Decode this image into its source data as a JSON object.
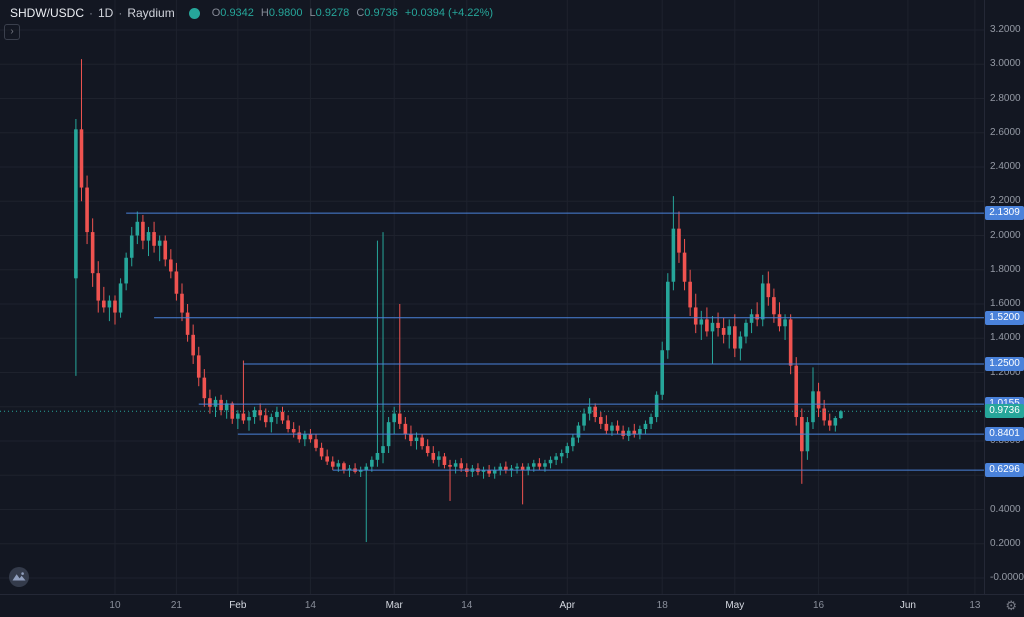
{
  "header": {
    "symbol": "SHDW/USDC",
    "separator": "·",
    "interval": "1D",
    "provider": "Raydium",
    "ohlc": {
      "open_label": "O",
      "open": "0.9342",
      "high_label": "H",
      "high": "0.9800",
      "low_label": "L",
      "low": "0.9278",
      "close_label": "C",
      "close": "0.9736",
      "change": "+0.0394 (+4.22%)"
    }
  },
  "icons": {
    "collapse": "›",
    "settings": "⚙"
  },
  "colors": {
    "background": "#131722",
    "grid": "#1e222d",
    "up": "#26a69a",
    "down": "#ef5350",
    "level_blue": "#4a82da",
    "last_price_green": "#26a69a"
  },
  "price_axis": {
    "ticks": [
      {
        "label": "3.2000",
        "value": 3.2
      },
      {
        "label": "3.0000",
        "value": 3.0
      },
      {
        "label": "2.8000",
        "value": 2.8
      },
      {
        "label": "2.6000",
        "value": 2.6
      },
      {
        "label": "2.4000",
        "value": 2.4
      },
      {
        "label": "2.2000",
        "value": 2.2
      },
      {
        "label": "2.0000",
        "value": 2.0
      },
      {
        "label": "1.8000",
        "value": 1.8
      },
      {
        "label": "1.6000",
        "value": 1.6
      },
      {
        "label": "1.4000",
        "value": 1.4
      },
      {
        "label": "1.2000",
        "value": 1.2
      },
      {
        "label": "0.8000",
        "value": 0.8
      },
      {
        "label": "0.6000",
        "value": 0.6
      },
      {
        "label": "0.4000",
        "value": 0.4
      },
      {
        "label": "0.2000",
        "value": 0.2
      },
      {
        "label": "-0.0000",
        "value": 0.0
      }
    ],
    "level_labels": [
      {
        "label": "2.1309",
        "value": 2.1309
      },
      {
        "label": "1.5200",
        "value": 1.52
      },
      {
        "label": "1.2500",
        "value": 1.25
      },
      {
        "label": "1.0155",
        "value": 1.0155
      },
      {
        "label": "0.8401",
        "value": 0.8401
      },
      {
        "label": "0.6296",
        "value": 0.6296
      }
    ],
    "last_price_label": {
      "label": "0.9736",
      "value": 0.9736
    }
  },
  "time_axis": {
    "ticks": [
      {
        "label": "10",
        "index": 7,
        "major": false
      },
      {
        "label": "21",
        "index": 18,
        "major": false
      },
      {
        "label": "Feb",
        "index": 29,
        "major": true
      },
      {
        "label": "14",
        "index": 42,
        "major": false
      },
      {
        "label": "Mar",
        "index": 57,
        "major": true
      },
      {
        "label": "14",
        "index": 70,
        "major": false
      },
      {
        "label": "Apr",
        "index": 88,
        "major": true
      },
      {
        "label": "18",
        "index": 105,
        "major": false
      },
      {
        "label": "May",
        "index": 118,
        "major": true
      },
      {
        "label": "16",
        "index": 133,
        "major": false
      },
      {
        "label": "Jun",
        "index": 149,
        "major": true
      },
      {
        "label": "13",
        "index": 161,
        "major": false
      }
    ]
  },
  "chart_data": {
    "type": "candlestick",
    "title": "SHDW/USDC · 1D · Raydium",
    "ylim": [
      0,
      3.2
    ],
    "y_step": 0.2,
    "last_price": 0.9736,
    "levels": [
      {
        "price": 2.1309,
        "from_index": 9
      },
      {
        "price": 1.52,
        "from_index": 14
      },
      {
        "price": 1.25,
        "from_index": 30
      },
      {
        "price": 1.0155,
        "from_index": 22
      },
      {
        "price": 0.8401,
        "from_index": 29
      },
      {
        "price": 0.6296,
        "from_index": 46
      }
    ],
    "ohlc": [
      [
        1.75,
        2.68,
        1.18,
        2.62
      ],
      [
        2.62,
        3.03,
        2.2,
        2.28
      ],
      [
        2.28,
        2.35,
        1.95,
        2.02
      ],
      [
        2.02,
        2.1,
        1.7,
        1.78
      ],
      [
        1.78,
        1.85,
        1.55,
        1.62
      ],
      [
        1.62,
        1.7,
        1.55,
        1.58
      ],
      [
        1.58,
        1.65,
        1.5,
        1.62
      ],
      [
        1.62,
        1.65,
        1.48,
        1.55
      ],
      [
        1.55,
        1.75,
        1.52,
        1.72
      ],
      [
        1.72,
        1.9,
        1.68,
        1.87
      ],
      [
        1.87,
        2.05,
        1.82,
        2.0
      ],
      [
        2.0,
        2.14,
        1.95,
        2.08
      ],
      [
        2.08,
        2.12,
        1.92,
        1.97
      ],
      [
        1.97,
        2.05,
        1.88,
        2.02
      ],
      [
        2.02,
        2.08,
        1.9,
        1.94
      ],
      [
        1.94,
        2.0,
        1.85,
        1.97
      ],
      [
        1.97,
        2.0,
        1.82,
        1.86
      ],
      [
        1.86,
        1.92,
        1.75,
        1.79
      ],
      [
        1.79,
        1.84,
        1.62,
        1.66
      ],
      [
        1.66,
        1.72,
        1.5,
        1.55
      ],
      [
        1.55,
        1.6,
        1.38,
        1.42
      ],
      [
        1.42,
        1.48,
        1.25,
        1.3
      ],
      [
        1.3,
        1.35,
        1.12,
        1.17
      ],
      [
        1.17,
        1.22,
        1.0,
        1.05
      ],
      [
        1.05,
        1.1,
        0.96,
        1.0
      ],
      [
        1.0,
        1.06,
        0.94,
        1.04
      ],
      [
        1.04,
        1.07,
        0.95,
        0.98
      ],
      [
        0.98,
        1.04,
        0.93,
        1.02
      ],
      [
        1.02,
        1.03,
        0.9,
        0.93
      ],
      [
        0.93,
        0.98,
        0.87,
        0.96
      ],
      [
        0.96,
        1.27,
        0.9,
        0.92
      ],
      [
        0.92,
        0.97,
        0.86,
        0.94
      ],
      [
        0.94,
        1.0,
        0.9,
        0.98
      ],
      [
        0.98,
        1.02,
        0.92,
        0.95
      ],
      [
        0.95,
        0.99,
        0.88,
        0.91
      ],
      [
        0.91,
        0.96,
        0.85,
        0.94
      ],
      [
        0.94,
        1.0,
        0.9,
        0.97
      ],
      [
        0.97,
        1.0,
        0.9,
        0.92
      ],
      [
        0.92,
        0.95,
        0.85,
        0.87
      ],
      [
        0.87,
        0.91,
        0.82,
        0.85
      ],
      [
        0.85,
        0.89,
        0.79,
        0.81
      ],
      [
        0.81,
        0.86,
        0.77,
        0.84
      ],
      [
        0.84,
        0.87,
        0.79,
        0.81
      ],
      [
        0.81,
        0.84,
        0.74,
        0.76
      ],
      [
        0.76,
        0.79,
        0.69,
        0.71
      ],
      [
        0.71,
        0.75,
        0.66,
        0.68
      ],
      [
        0.68,
        0.71,
        0.63,
        0.65
      ],
      [
        0.65,
        0.69,
        0.62,
        0.67
      ],
      [
        0.67,
        0.68,
        0.61,
        0.63
      ],
      [
        0.63,
        0.66,
        0.59,
        0.64
      ],
      [
        0.64,
        0.67,
        0.61,
        0.62
      ],
      [
        0.62,
        0.65,
        0.59,
        0.63
      ],
      [
        0.63,
        0.67,
        0.21,
        0.65
      ],
      [
        0.65,
        0.71,
        0.62,
        0.69
      ],
      [
        0.69,
        1.97,
        0.65,
        0.73
      ],
      [
        0.73,
        2.02,
        0.67,
        0.77
      ],
      [
        0.77,
        0.94,
        0.73,
        0.91
      ],
      [
        0.91,
        1.0,
        0.84,
        0.96
      ],
      [
        0.96,
        1.6,
        0.87,
        0.9
      ],
      [
        0.9,
        0.94,
        0.81,
        0.84
      ],
      [
        0.84,
        0.89,
        0.77,
        0.8
      ],
      [
        0.8,
        0.85,
        0.75,
        0.82
      ],
      [
        0.82,
        0.84,
        0.75,
        0.77
      ],
      [
        0.77,
        0.81,
        0.71,
        0.73
      ],
      [
        0.73,
        0.77,
        0.67,
        0.69
      ],
      [
        0.69,
        0.74,
        0.65,
        0.71
      ],
      [
        0.71,
        0.73,
        0.64,
        0.66
      ],
      [
        0.66,
        0.69,
        0.45,
        0.65
      ],
      [
        0.65,
        0.69,
        0.61,
        0.67
      ],
      [
        0.67,
        0.7,
        0.62,
        0.64
      ],
      [
        0.64,
        0.67,
        0.59,
        0.62
      ],
      [
        0.62,
        0.66,
        0.59,
        0.64
      ],
      [
        0.64,
        0.67,
        0.6,
        0.62
      ],
      [
        0.62,
        0.65,
        0.58,
        0.63
      ],
      [
        0.63,
        0.66,
        0.59,
        0.61
      ],
      [
        0.61,
        0.65,
        0.58,
        0.63
      ],
      [
        0.63,
        0.67,
        0.6,
        0.65
      ],
      [
        0.65,
        0.68,
        0.61,
        0.63
      ],
      [
        0.63,
        0.66,
        0.59,
        0.64
      ],
      [
        0.64,
        0.67,
        0.61,
        0.65
      ],
      [
        0.65,
        0.67,
        0.43,
        0.63
      ],
      [
        0.63,
        0.67,
        0.6,
        0.65
      ],
      [
        0.65,
        0.69,
        0.62,
        0.67
      ],
      [
        0.67,
        0.7,
        0.63,
        0.65
      ],
      [
        0.65,
        0.69,
        0.62,
        0.67
      ],
      [
        0.67,
        0.71,
        0.64,
        0.69
      ],
      [
        0.69,
        0.73,
        0.66,
        0.71
      ],
      [
        0.71,
        0.75,
        0.67,
        0.73
      ],
      [
        0.73,
        0.79,
        0.7,
        0.77
      ],
      [
        0.77,
        0.84,
        0.74,
        0.82
      ],
      [
        0.82,
        0.91,
        0.79,
        0.89
      ],
      [
        0.89,
        0.99,
        0.86,
        0.96
      ],
      [
        0.96,
        1.05,
        0.92,
        1.0
      ],
      [
        1.0,
        1.02,
        0.91,
        0.94
      ],
      [
        0.94,
        0.97,
        0.87,
        0.9
      ],
      [
        0.9,
        0.95,
        0.84,
        0.86
      ],
      [
        0.86,
        0.91,
        0.83,
        0.89
      ],
      [
        0.89,
        0.92,
        0.84,
        0.86
      ],
      [
        0.86,
        0.89,
        0.81,
        0.83
      ],
      [
        0.83,
        0.88,
        0.8,
        0.86
      ],
      [
        0.86,
        0.9,
        0.82,
        0.84
      ],
      [
        0.84,
        0.89,
        0.81,
        0.87
      ],
      [
        0.87,
        0.92,
        0.84,
        0.9
      ],
      [
        0.9,
        0.96,
        0.87,
        0.94
      ],
      [
        0.94,
        1.09,
        0.91,
        1.07
      ],
      [
        1.07,
        1.38,
        1.04,
        1.33
      ],
      [
        1.33,
        1.78,
        1.28,
        1.73
      ],
      [
        1.73,
        2.23,
        1.68,
        2.04
      ],
      [
        2.04,
        2.14,
        1.84,
        1.9
      ],
      [
        1.9,
        1.98,
        1.68,
        1.73
      ],
      [
        1.73,
        1.8,
        1.53,
        1.58
      ],
      [
        1.58,
        1.66,
        1.43,
        1.48
      ],
      [
        1.48,
        1.56,
        1.39,
        1.51
      ],
      [
        1.51,
        1.58,
        1.41,
        1.44
      ],
      [
        1.44,
        1.53,
        1.25,
        1.49
      ],
      [
        1.49,
        1.55,
        1.41,
        1.46
      ],
      [
        1.46,
        1.52,
        1.37,
        1.42
      ],
      [
        1.42,
        1.51,
        1.34,
        1.47
      ],
      [
        1.47,
        1.54,
        1.29,
        1.34
      ],
      [
        1.34,
        1.44,
        1.27,
        1.41
      ],
      [
        1.41,
        1.51,
        1.37,
        1.49
      ],
      [
        1.49,
        1.57,
        1.43,
        1.54
      ],
      [
        1.54,
        1.61,
        1.47,
        1.51
      ],
      [
        1.51,
        1.77,
        1.47,
        1.72
      ],
      [
        1.72,
        1.79,
        1.59,
        1.64
      ],
      [
        1.64,
        1.69,
        1.49,
        1.54
      ],
      [
        1.54,
        1.61,
        1.44,
        1.47
      ],
      [
        1.47,
        1.54,
        1.39,
        1.51
      ],
      [
        1.51,
        1.54,
        1.19,
        1.24
      ],
      [
        1.24,
        1.29,
        0.89,
        0.94
      ],
      [
        0.94,
        0.99,
        0.55,
        0.74
      ],
      [
        0.74,
        0.94,
        0.69,
        0.91
      ],
      [
        0.91,
        1.23,
        0.87,
        1.09
      ],
      [
        1.09,
        1.14,
        0.94,
        0.99
      ],
      [
        0.99,
        1.04,
        0.89,
        0.92
      ],
      [
        0.92,
        0.96,
        0.86,
        0.89
      ],
      [
        0.89,
        0.945,
        0.855,
        0.9342
      ],
      [
        0.9342,
        0.98,
        0.9278,
        0.9736
      ]
    ]
  }
}
